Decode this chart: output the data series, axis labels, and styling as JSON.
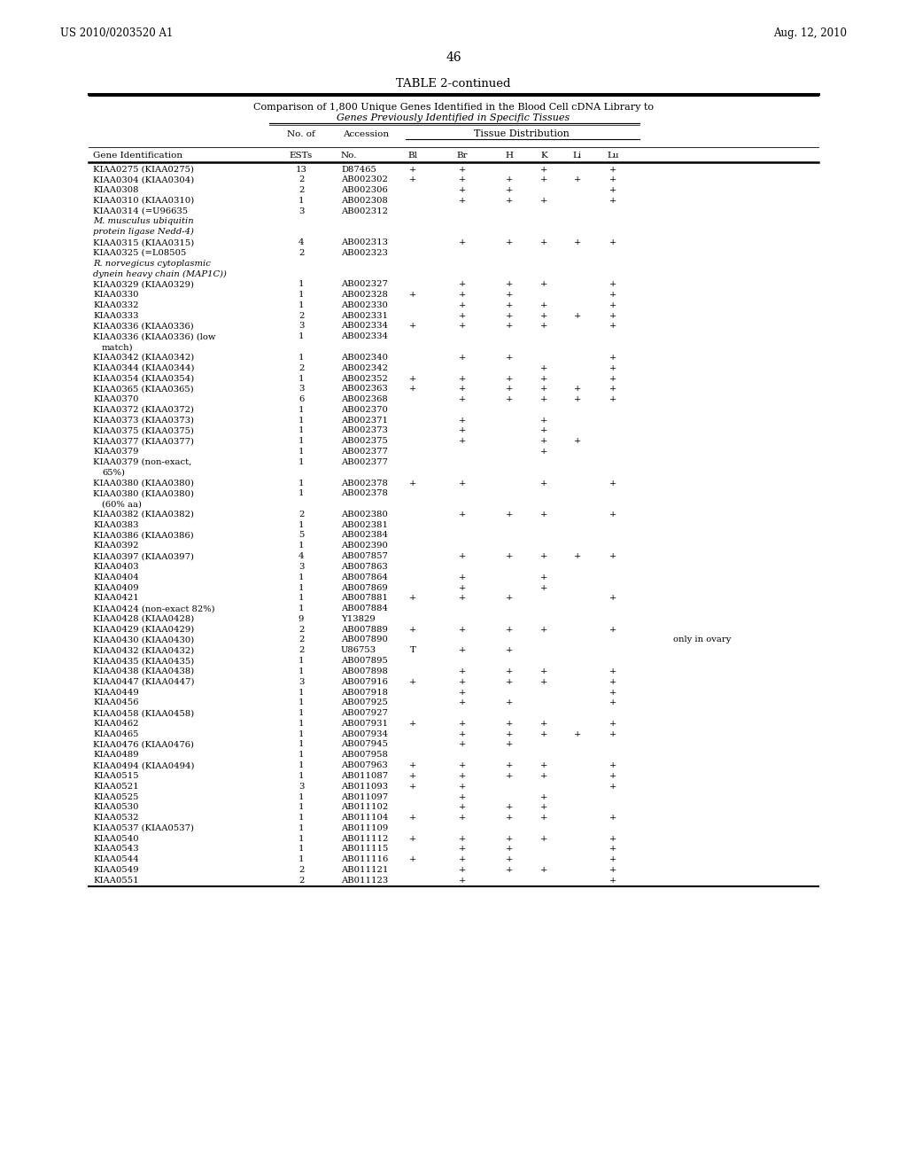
{
  "header_left": "US 2010/0203520 A1",
  "header_right": "Aug. 12, 2010",
  "page_number": "46",
  "table_title": "TABLE 2-continued",
  "subtitle1": "Comparison of 1,800 Unique Genes Identified in the Blood Cell cDNA Library to",
  "subtitle2": "Genes Previously Identified in Specific Tissues",
  "col_header_group": "Tissue Distribution",
  "rows": [
    [
      "KIAA0275 (KIAA0275)",
      "13",
      "D87465",
      "+",
      "+",
      "",
      "+",
      "",
      "+",
      ""
    ],
    [
      "KIAA0304 (KIAA0304)",
      "2",
      "AB002302",
      "+",
      "+",
      "+",
      "+",
      "+",
      "+",
      ""
    ],
    [
      "KIAA0308",
      "2",
      "AB002306",
      "",
      "+",
      "+",
      "",
      "",
      "+",
      ""
    ],
    [
      "KIAA0310 (KIAA0310)",
      "1",
      "AB002308",
      "",
      "+",
      "+",
      "+",
      "",
      "+",
      ""
    ],
    [
      "KIAA0314 (=U96635",
      "3",
      "AB002312",
      "",
      "",
      "",
      "",
      "",
      "",
      ""
    ],
    [
      "M. musculus ubiquitin",
      "",
      "",
      "",
      "",
      "",
      "",
      "",
      "",
      "italic"
    ],
    [
      "protein ligase Nedd-4)",
      "",
      "",
      "",
      "",
      "",
      "",
      "",
      "",
      "italic"
    ],
    [
      "KIAA0315 (KIAA0315)",
      "4",
      "AB002313",
      "",
      "+",
      "+",
      "+",
      "+",
      "+",
      ""
    ],
    [
      "KIAA0325 (=L08505",
      "2",
      "AB002323",
      "",
      "",
      "",
      "",
      "",
      "",
      ""
    ],
    [
      "R. norvegicus cytoplasmic",
      "",
      "",
      "",
      "",
      "",
      "",
      "",
      "",
      "italic"
    ],
    [
      "dynein heavy chain (MAP1C))",
      "",
      "",
      "",
      "",
      "",
      "",
      "",
      "",
      "italic"
    ],
    [
      "KIAA0329 (KIAA0329)",
      "1",
      "AB002327",
      "",
      "+",
      "+",
      "+",
      "",
      "+",
      ""
    ],
    [
      "KIAA0330",
      "1",
      "AB002328",
      "+",
      "+",
      "+",
      "",
      "",
      "+",
      ""
    ],
    [
      "KIAA0332",
      "1",
      "AB002330",
      "",
      "+",
      "+",
      "+",
      "",
      "+",
      ""
    ],
    [
      "KIAA0333",
      "2",
      "AB002331",
      "",
      "+",
      "+",
      "+",
      "+",
      "+",
      ""
    ],
    [
      "KIAA0336 (KIAA0336)",
      "3",
      "AB002334",
      "+",
      "+",
      "+",
      "+",
      "",
      "+",
      ""
    ],
    [
      "KIAA0336 (KIAA0336) (low",
      "1",
      "AB002334",
      "",
      "",
      "",
      "",
      "",
      "",
      ""
    ],
    [
      "match)",
      "",
      "",
      "",
      "",
      "",
      "",
      "",
      "",
      "cont"
    ],
    [
      "KIAA0342 (KIAA0342)",
      "1",
      "AB002340",
      "",
      "+",
      "+",
      "",
      "",
      "+",
      ""
    ],
    [
      "KIAA0344 (KIAA0344)",
      "2",
      "AB002342",
      "",
      "",
      "",
      "+",
      "",
      "+",
      ""
    ],
    [
      "KIAA0354 (KIAA0354)",
      "1",
      "AB002352",
      "+",
      "+",
      "+",
      "+",
      "",
      "+",
      ""
    ],
    [
      "KIAA0365 (KIAA0365)",
      "3",
      "AB002363",
      "+",
      "+",
      "+",
      "+",
      "+",
      "+",
      ""
    ],
    [
      "KIAA0370",
      "6",
      "AB002368",
      "",
      "+",
      "+",
      "+",
      "+",
      "+",
      ""
    ],
    [
      "KIAA0372 (KIAA0372)",
      "1",
      "AB002370",
      "",
      "",
      "",
      "",
      "",
      "",
      ""
    ],
    [
      "KIAA0373 (KIAA0373)",
      "1",
      "AB002371",
      "",
      "+",
      "",
      "+",
      "",
      "",
      ""
    ],
    [
      "KIAA0375 (KIAA0375)",
      "1",
      "AB002373",
      "",
      "+",
      "",
      "+",
      "",
      "",
      ""
    ],
    [
      "KIAA0377 (KIAA0377)",
      "1",
      "AB002375",
      "",
      "+",
      "",
      "+",
      "+",
      "",
      ""
    ],
    [
      "KIAA0379",
      "1",
      "AB002377",
      "",
      "",
      "",
      "+",
      "",
      "",
      ""
    ],
    [
      "KIAA0379 (non-exact,",
      "1",
      "AB002377",
      "",
      "",
      "",
      "",
      "",
      "",
      ""
    ],
    [
      "65%)",
      "",
      "",
      "",
      "",
      "",
      "",
      "",
      "",
      "cont"
    ],
    [
      "KIAA0380 (KIAA0380)",
      "1",
      "AB002378",
      "+",
      "+",
      "",
      "+",
      "",
      "+",
      ""
    ],
    [
      "KIAA0380 (KIAA0380)",
      "1",
      "AB002378",
      "",
      "",
      "",
      "",
      "",
      "",
      ""
    ],
    [
      "(60% aa)",
      "",
      "",
      "",
      "",
      "",
      "",
      "",
      "",
      "cont"
    ],
    [
      "KIAA0382 (KIAA0382)",
      "2",
      "AB002380",
      "",
      "+",
      "+",
      "+",
      "",
      "+",
      ""
    ],
    [
      "KIAA0383",
      "1",
      "AB002381",
      "",
      "",
      "",
      "",
      "",
      "",
      ""
    ],
    [
      "KIAA0386 (KIAA0386)",
      "5",
      "AB002384",
      "",
      "",
      "",
      "",
      "",
      "",
      ""
    ],
    [
      "KIAA0392",
      "1",
      "AB002390",
      "",
      "",
      "",
      "",
      "",
      "",
      ""
    ],
    [
      "KIAA0397 (KIAA0397)",
      "4",
      "AB007857",
      "",
      "+",
      "+",
      "+",
      "+",
      "+",
      ""
    ],
    [
      "KIAA0403",
      "3",
      "AB007863",
      "",
      "",
      "",
      "",
      "",
      "",
      ""
    ],
    [
      "KIAA0404",
      "1",
      "AB007864",
      "",
      "+",
      "",
      "+",
      "",
      "",
      ""
    ],
    [
      "KIAA0409",
      "1",
      "AB007869",
      "",
      "+",
      "",
      "+",
      "",
      "",
      ""
    ],
    [
      "KIAA0421",
      "1",
      "AB007881",
      "+",
      "+",
      "+",
      "",
      "",
      "+",
      ""
    ],
    [
      "KIAA0424 (non-exact 82%)",
      "1",
      "AB007884",
      "",
      "",
      "",
      "",
      "",
      "",
      ""
    ],
    [
      "KIAA0428 (KIAA0428)",
      "9",
      "Y13829",
      "",
      "",
      "",
      "",
      "",
      "",
      ""
    ],
    [
      "KIAA0429 (KIAA0429)",
      "2",
      "AB007889",
      "+",
      "+",
      "+",
      "+",
      "",
      "+",
      ""
    ],
    [
      "KIAA0430 (KIAA0430)",
      "2",
      "AB007890",
      "",
      "",
      "",
      "",
      "",
      "",
      "only in ovary"
    ],
    [
      "KIAA0432 (KIAA0432)",
      "2",
      "U86753",
      "T",
      "+",
      "+",
      "",
      "",
      "",
      ""
    ],
    [
      "KIAA0435 (KIAA0435)",
      "1",
      "AB007895",
      "",
      "",
      "",
      "",
      "",
      "",
      ""
    ],
    [
      "KIAA0438 (KIAA0438)",
      "1",
      "AB007898",
      "",
      "+",
      "+",
      "+",
      "",
      "+",
      ""
    ],
    [
      "KIAA0447 (KIAA0447)",
      "3",
      "AB007916",
      "+",
      "+",
      "+",
      "+",
      "",
      "+",
      ""
    ],
    [
      "KIAA0449",
      "1",
      "AB007918",
      "",
      "+",
      "",
      "",
      "",
      "+",
      ""
    ],
    [
      "KIAA0456",
      "1",
      "AB007925",
      "",
      "+",
      "+",
      "",
      "",
      "+",
      ""
    ],
    [
      "KIAA0458 (KIAA0458)",
      "1",
      "AB007927",
      "",
      "",
      "",
      "",
      "",
      "",
      ""
    ],
    [
      "KIAA0462",
      "1",
      "AB007931",
      "+",
      "+",
      "+",
      "+",
      "",
      "+",
      ""
    ],
    [
      "KIAA0465",
      "1",
      "AB007934",
      "",
      "+",
      "+",
      "+",
      "+",
      "+",
      ""
    ],
    [
      "KIAA0476 (KIAA0476)",
      "1",
      "AB007945",
      "",
      "+",
      "+",
      "",
      "",
      "",
      ""
    ],
    [
      "KIAA0489",
      "1",
      "AB007958",
      "",
      "",
      "",
      "",
      "",
      "",
      ""
    ],
    [
      "KIAA0494 (KIAA0494)",
      "1",
      "AB007963",
      "+",
      "+",
      "+",
      "+",
      "",
      "+",
      ""
    ],
    [
      "KIAA0515",
      "1",
      "AB011087",
      "+",
      "+",
      "+",
      "+",
      "",
      "+",
      ""
    ],
    [
      "KIAA0521",
      "3",
      "AB011093",
      "+",
      "+",
      "",
      "",
      "",
      "+",
      ""
    ],
    [
      "KIAA0525",
      "1",
      "AB011097",
      "",
      "+",
      "",
      "+",
      "",
      "",
      ""
    ],
    [
      "KIAA0530",
      "1",
      "AB011102",
      "",
      "+",
      "+",
      "+",
      "",
      "",
      ""
    ],
    [
      "KIAA0532",
      "1",
      "AB011104",
      "+",
      "+",
      "+",
      "+",
      "",
      "+",
      ""
    ],
    [
      "KIAA0537 (KIAA0537)",
      "1",
      "AB011109",
      "",
      "",
      "",
      "",
      "",
      "",
      ""
    ],
    [
      "KIAA0540",
      "1",
      "AB011112",
      "+",
      "+",
      "+",
      "+",
      "",
      "+",
      ""
    ],
    [
      "KIAA0543",
      "1",
      "AB011115",
      "",
      "+",
      "+",
      "",
      "",
      "+",
      ""
    ],
    [
      "KIAA0544",
      "1",
      "AB011116",
      "+",
      "+",
      "+",
      "",
      "",
      "+",
      ""
    ],
    [
      "KIAA0549",
      "2",
      "AB011121",
      "",
      "+",
      "+",
      "+",
      "",
      "+",
      ""
    ],
    [
      "KIAA0551",
      "2",
      "AB011123",
      "",
      "+",
      "",
      "",
      "",
      "+",
      ""
    ]
  ],
  "background_color": "#ffffff",
  "text_color": "#000000"
}
